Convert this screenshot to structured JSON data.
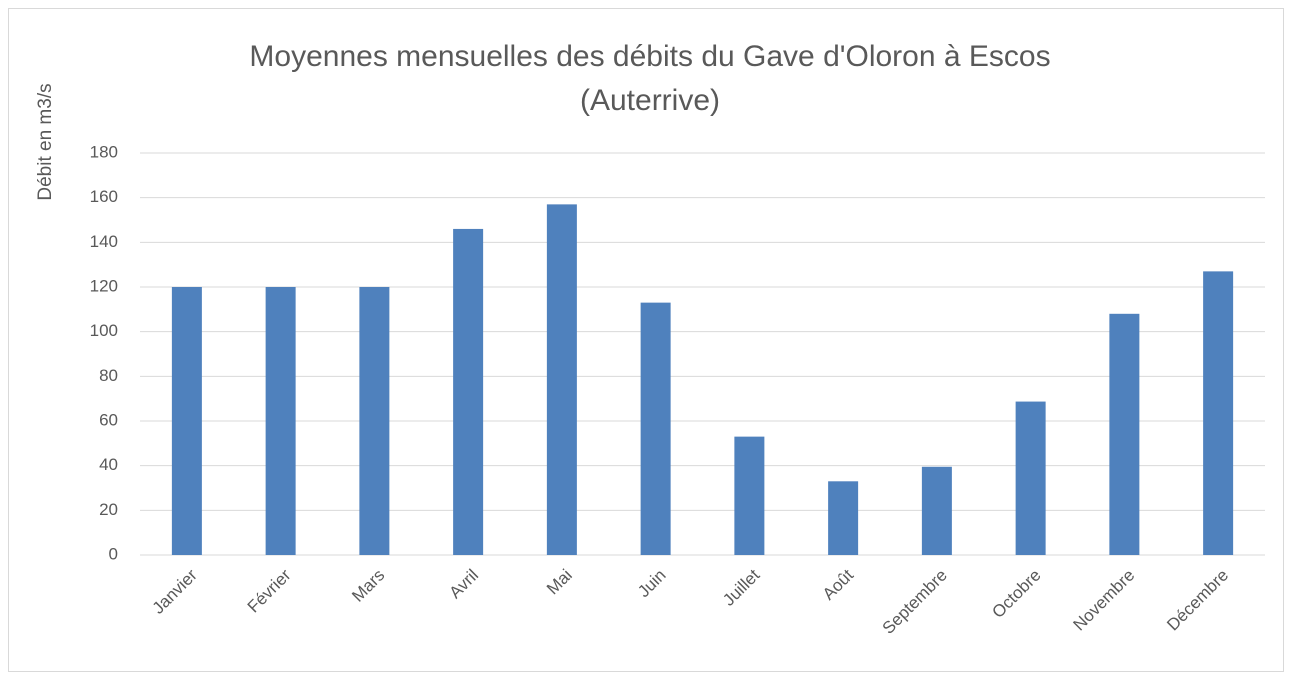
{
  "chart_data": {
    "type": "bar",
    "title": [
      "Moyennes mensuelles des débits du Gave d'Oloron à Escos",
      "(Auterrive)"
    ],
    "y_label": "Débit en m3/s",
    "categories": [
      "Janvier",
      "Février",
      "Mars",
      "Avril",
      "Mai",
      "Juin",
      "Juillet",
      "Août",
      "Septembre",
      "Octobre",
      "Novembre",
      "Décembre"
    ],
    "values": [
      120,
      120,
      120,
      146,
      157,
      113,
      53,
      33,
      39.5,
      68.7,
      108,
      127
    ],
    "color": "#4f81bd",
    "ylim": [
      0,
      180
    ],
    "yticks": [
      0,
      20,
      40,
      60,
      80,
      100,
      120,
      140,
      160,
      180
    ],
    "grid": true
  }
}
